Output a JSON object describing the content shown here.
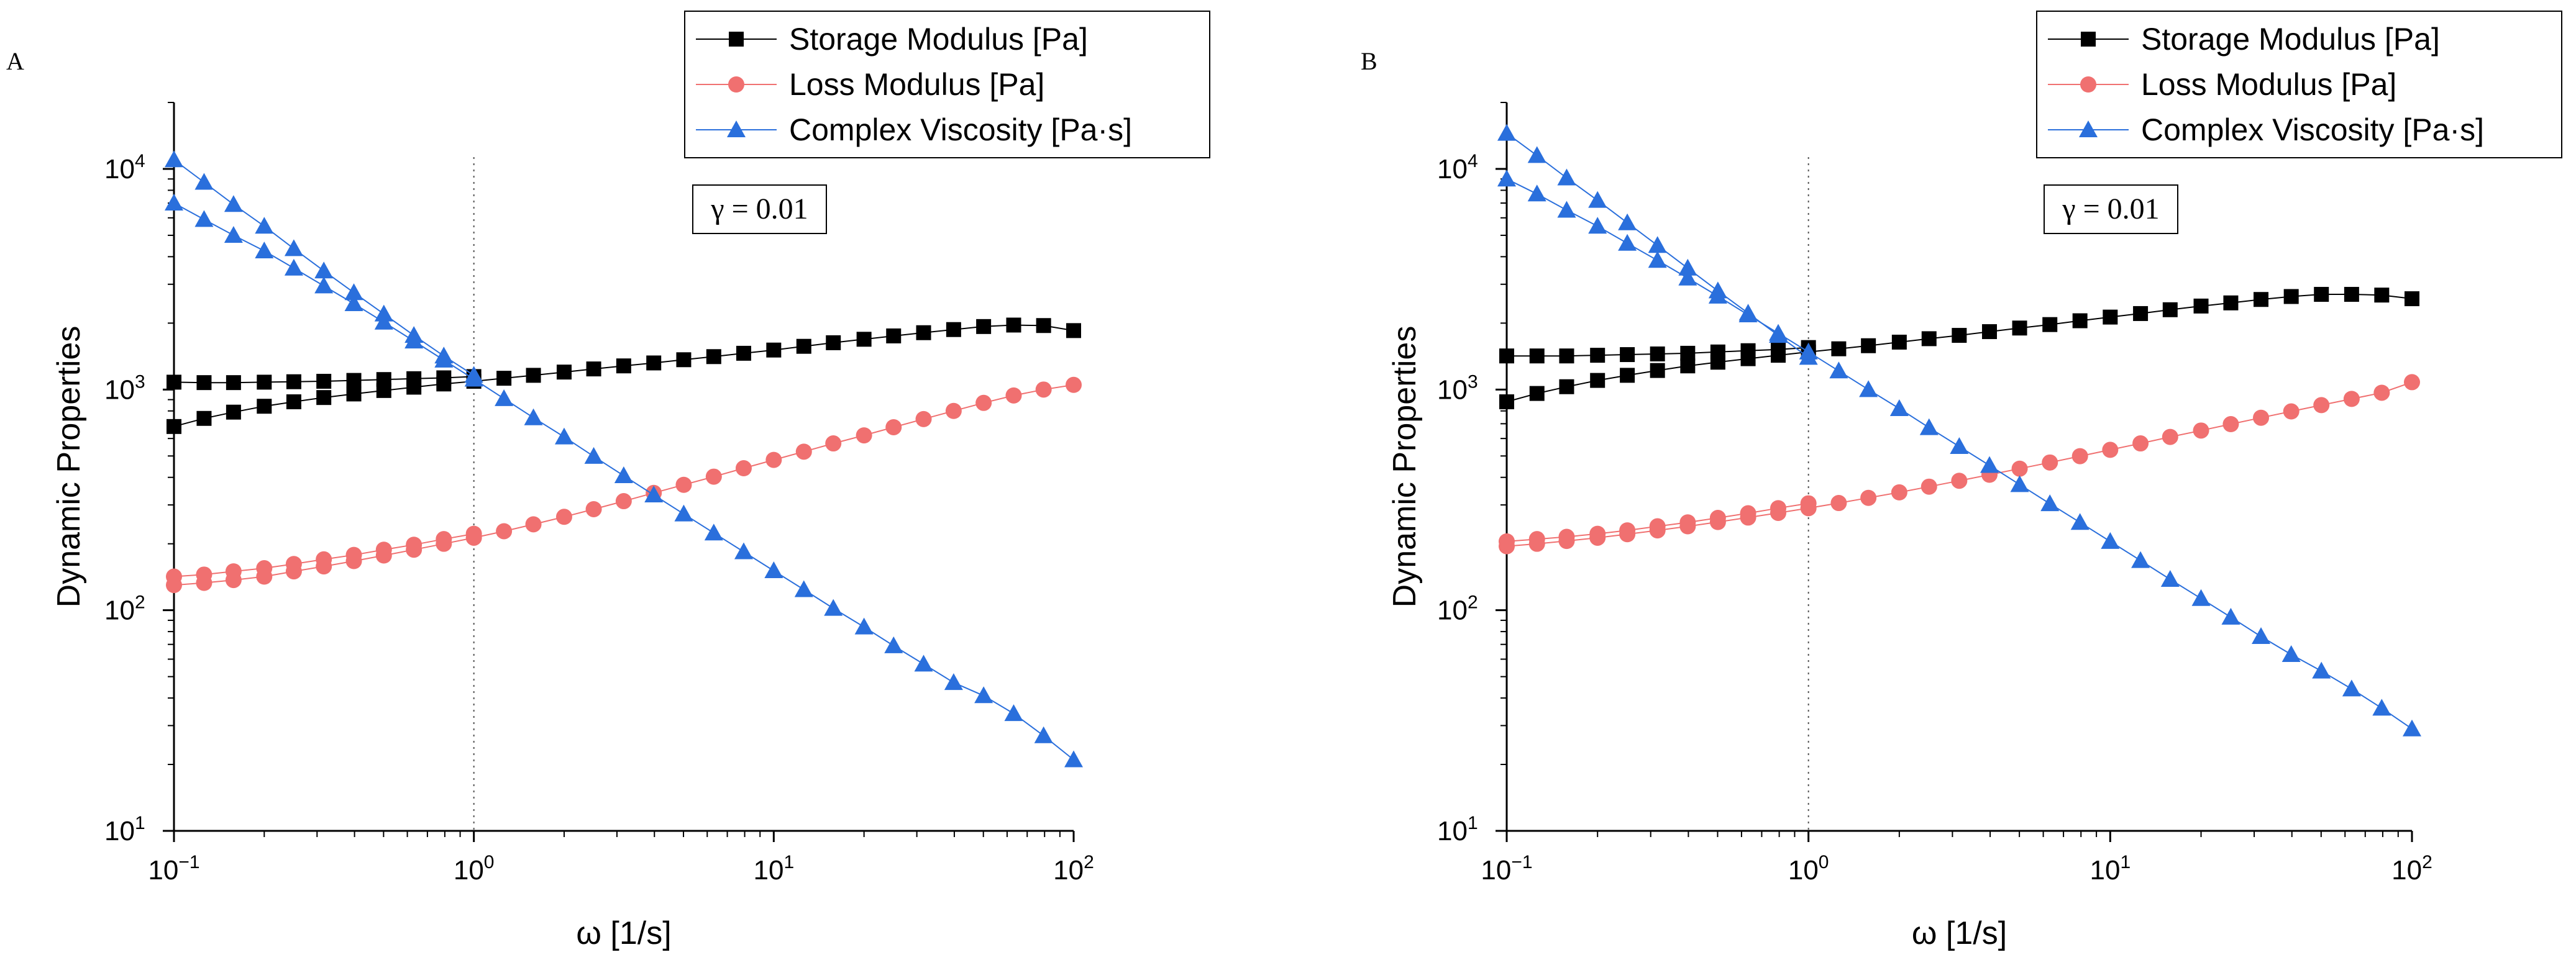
{
  "chart_data": [
    {
      "panel_label": "A",
      "type": "scatter",
      "xscale": "log",
      "yscale": "log",
      "xlim": [
        0.1,
        100
      ],
      "ylim": [
        10,
        20000
      ],
      "xlabel": "ω [1/s]",
      "ylabel": "Dynamic Properties",
      "x_ticks": [
        {
          "value": 0.1,
          "base": "10",
          "exp": "−1"
        },
        {
          "value": 1,
          "base": "10",
          "exp": "0"
        },
        {
          "value": 10,
          "base": "10",
          "exp": "1"
        },
        {
          "value": 100,
          "base": "10",
          "exp": "2"
        }
      ],
      "y_ticks": [
        {
          "value": 10,
          "base": "10",
          "exp": "1"
        },
        {
          "value": 100,
          "base": "10",
          "exp": "2"
        },
        {
          "value": 1000,
          "base": "10",
          "exp": "3"
        },
        {
          "value": 10000,
          "base": "10",
          "exp": "4"
        }
      ],
      "reference_line_x": 1,
      "annotation": "γ = 0.01",
      "legend_position": "top-right",
      "series": [
        {
          "name": "Storage Modulus [Pa]",
          "marker": "square",
          "color": "#000000",
          "branches": [
            {
              "x": [
                0.1,
                0.126,
                0.158,
                0.2,
                0.251,
                0.316,
                0.398,
                0.501,
                0.631,
                0.794,
                1.0
              ],
              "y": [
                1080,
                1075,
                1075,
                1080,
                1085,
                1090,
                1100,
                1110,
                1120,
                1130,
                1145
              ]
            },
            {
              "x": [
                0.1,
                0.126,
                0.158,
                0.2,
                0.251,
                0.316,
                0.398,
                0.501,
                0.631,
                0.794,
                1.0,
                1.26,
                1.58,
                2.0,
                2.51,
                3.16,
                3.98,
                5.01,
                6.31,
                7.94,
                10.0,
                12.6,
                15.8,
                20.0,
                25.1,
                31.6,
                39.8,
                50.1,
                63.1,
                79.4,
                100.0
              ],
              "y": [
                680,
                740,
                790,
                840,
                880,
                920,
                955,
                990,
                1025,
                1060,
                1090,
                1125,
                1160,
                1200,
                1240,
                1280,
                1320,
                1365,
                1410,
                1460,
                1510,
                1570,
                1630,
                1690,
                1750,
                1810,
                1870,
                1930,
                1960,
                1950,
                1850
              ]
            }
          ]
        },
        {
          "name": "Loss Modulus [Pa]",
          "marker": "circle",
          "color": "#f07070",
          "branches": [
            {
              "x": [
                0.1,
                0.126,
                0.158,
                0.2,
                0.251,
                0.316,
                0.398,
                0.501,
                0.631,
                0.794,
                1.0
              ],
              "y": [
                142,
                145,
                150,
                155,
                162,
                170,
                178,
                188,
                198,
                210,
                222
              ]
            },
            {
              "x": [
                0.1,
                0.126,
                0.158,
                0.2,
                0.251,
                0.316,
                0.398,
                0.501,
                0.631,
                0.794,
                1.0,
                1.26,
                1.58,
                2.0,
                2.51,
                3.16,
                3.98,
                5.01,
                6.31,
                7.94,
                10.0,
                12.6,
                15.8,
                20.0,
                25.1,
                31.6,
                39.8,
                50.1,
                63.1,
                79.4,
                100.0
              ],
              "y": [
                130,
                133,
                137,
                142,
                150,
                158,
                167,
                177,
                188,
                200,
                213,
                228,
                245,
                265,
                287,
                312,
                340,
                370,
                403,
                440,
                480,
                523,
                570,
                620,
                675,
                735,
                800,
                870,
                940,
                1000,
                1050
              ]
            }
          ]
        },
        {
          "name": "Complex Viscosity [Pa·s]",
          "marker": "triangle",
          "color": "#2a6fdc",
          "branches": [
            {
              "x": [
                0.1,
                0.126,
                0.158,
                0.2,
                0.251,
                0.316,
                0.398,
                0.501,
                0.631,
                0.794,
                1.0
              ],
              "y": [
                11000,
                8700,
                6900,
                5500,
                4350,
                3450,
                2750,
                2200,
                1760,
                1420,
                1160
              ]
            },
            {
              "x": [
                0.1,
                0.126,
                0.158,
                0.2,
                0.251,
                0.316,
                0.398,
                0.501,
                0.631,
                0.794,
                1.0,
                1.26,
                1.58,
                2.0,
                2.51,
                3.16,
                3.98,
                5.01,
                6.31,
                7.94,
                10.0,
                12.6,
                15.8,
                20.0,
                25.1,
                31.6,
                39.8,
                50.1,
                63.1,
                79.4,
                100.0
              ],
              "y": [
                7000,
                5900,
                5000,
                4250,
                3550,
                2950,
                2450,
                2020,
                1660,
                1360,
                1115,
                910,
                745,
                610,
                498,
                407,
                333,
                273,
                224,
                184,
                151,
                124,
                102,
                84,
                69,
                57,
                47,
                41,
                34,
                27,
                21
              ]
            }
          ]
        }
      ]
    },
    {
      "panel_label": "B",
      "type": "scatter",
      "xscale": "log",
      "yscale": "log",
      "xlim": [
        0.1,
        100
      ],
      "ylim": [
        10,
        20000
      ],
      "xlabel": "ω [1/s]",
      "ylabel": "Dynamic Properties",
      "x_ticks": [
        {
          "value": 0.1,
          "base": "10",
          "exp": "−1"
        },
        {
          "value": 1,
          "base": "10",
          "exp": "0"
        },
        {
          "value": 10,
          "base": "10",
          "exp": "1"
        },
        {
          "value": 100,
          "base": "10",
          "exp": "2"
        }
      ],
      "y_ticks": [
        {
          "value": 10,
          "base": "10",
          "exp": "1"
        },
        {
          "value": 100,
          "base": "10",
          "exp": "2"
        },
        {
          "value": 1000,
          "base": "10",
          "exp": "3"
        },
        {
          "value": 10000,
          "base": "10",
          "exp": "4"
        }
      ],
      "reference_line_x": 1,
      "annotation": "γ = 0.01",
      "legend_position": "top-right",
      "series": [
        {
          "name": "Storage Modulus [Pa]",
          "marker": "square",
          "color": "#000000",
          "branches": [
            {
              "x": [
                0.1,
                0.126,
                0.158,
                0.2,
                0.251,
                0.316,
                0.398,
                0.501,
                0.631,
                0.794,
                1.0
              ],
              "y": [
                1420,
                1420,
                1420,
                1430,
                1440,
                1450,
                1460,
                1480,
                1500,
                1520,
                1550
              ]
            },
            {
              "x": [
                0.1,
                0.126,
                0.158,
                0.2,
                0.251,
                0.316,
                0.398,
                0.501,
                0.631,
                0.794,
                1.0,
                1.26,
                1.58,
                2.0,
                2.51,
                3.16,
                3.98,
                5.01,
                6.31,
                7.94,
                10.0,
                12.6,
                15.8,
                20.0,
                25.1,
                31.6,
                39.8,
                50.1,
                63.1,
                79.4,
                100.0
              ],
              "y": [
                880,
                960,
                1030,
                1100,
                1160,
                1220,
                1280,
                1330,
                1380,
                1430,
                1480,
                1530,
                1580,
                1640,
                1700,
                1760,
                1830,
                1900,
                1970,
                2050,
                2130,
                2210,
                2300,
                2390,
                2470,
                2560,
                2640,
                2700,
                2700,
                2680,
                2580
              ]
            }
          ]
        },
        {
          "name": "Loss Modulus [Pa]",
          "marker": "circle",
          "color": "#f07070",
          "branches": [
            {
              "x": [
                0.1,
                0.126,
                0.158,
                0.2,
                0.251,
                0.316,
                0.398,
                0.501,
                0.631,
                0.794,
                1.0
              ],
              "y": [
                205,
                210,
                215,
                222,
                230,
                240,
                250,
                262,
                275,
                290,
                305
              ]
            },
            {
              "x": [
                0.1,
                0.126,
                0.158,
                0.2,
                0.251,
                0.316,
                0.398,
                0.501,
                0.631,
                0.794,
                1.0,
                1.26,
                1.58,
                2.0,
                2.51,
                3.16,
                3.98,
                5.01,
                6.31,
                7.94,
                10.0,
                12.6,
                15.8,
                20.0,
                25.1,
                31.6,
                39.8,
                50.1,
                63.1,
                79.4,
                100.0
              ],
              "y": [
                195,
                200,
                206,
                213,
                221,
                230,
                240,
                251,
                263,
                276,
                290,
                306,
                323,
                342,
                363,
                386,
                411,
                438,
                467,
                499,
                533,
                570,
                610,
                652,
                697,
                745,
                796,
                850,
                907,
                967,
                1080
              ]
            }
          ]
        },
        {
          "name": "Complex Viscosity [Pa·s]",
          "marker": "triangle",
          "color": "#2a6fdc",
          "branches": [
            {
              "x": [
                0.1,
                0.126,
                0.158,
                0.2,
                0.251,
                0.316,
                0.398,
                0.501,
                0.631,
                0.794,
                1.0
              ],
              "y": [
                14500,
                11500,
                9100,
                7200,
                5700,
                4500,
                3550,
                2800,
                2220,
                1760,
                1400
              ]
            },
            {
              "x": [
                0.1,
                0.126,
                0.158,
                0.2,
                0.251,
                0.316,
                0.398,
                0.501,
                0.631,
                0.794,
                1.0,
                1.26,
                1.58,
                2.0,
                2.51,
                3.16,
                3.98,
                5.01,
                6.31,
                7.94,
                10.0,
                12.6,
                15.8,
                20.0,
                25.1,
                31.6,
                39.8,
                50.1,
                63.1,
                79.4,
                100.0
              ],
              "y": [
                9000,
                7700,
                6500,
                5500,
                4600,
                3850,
                3200,
                2650,
                2180,
                1800,
                1480,
                1215,
                1000,
                820,
                672,
                552,
                453,
                371,
                304,
                250,
                205,
                168,
                138,
                113,
                93,
                76,
                63,
                53,
                44,
                36,
                29
              ]
            }
          ]
        }
      ]
    }
  ]
}
